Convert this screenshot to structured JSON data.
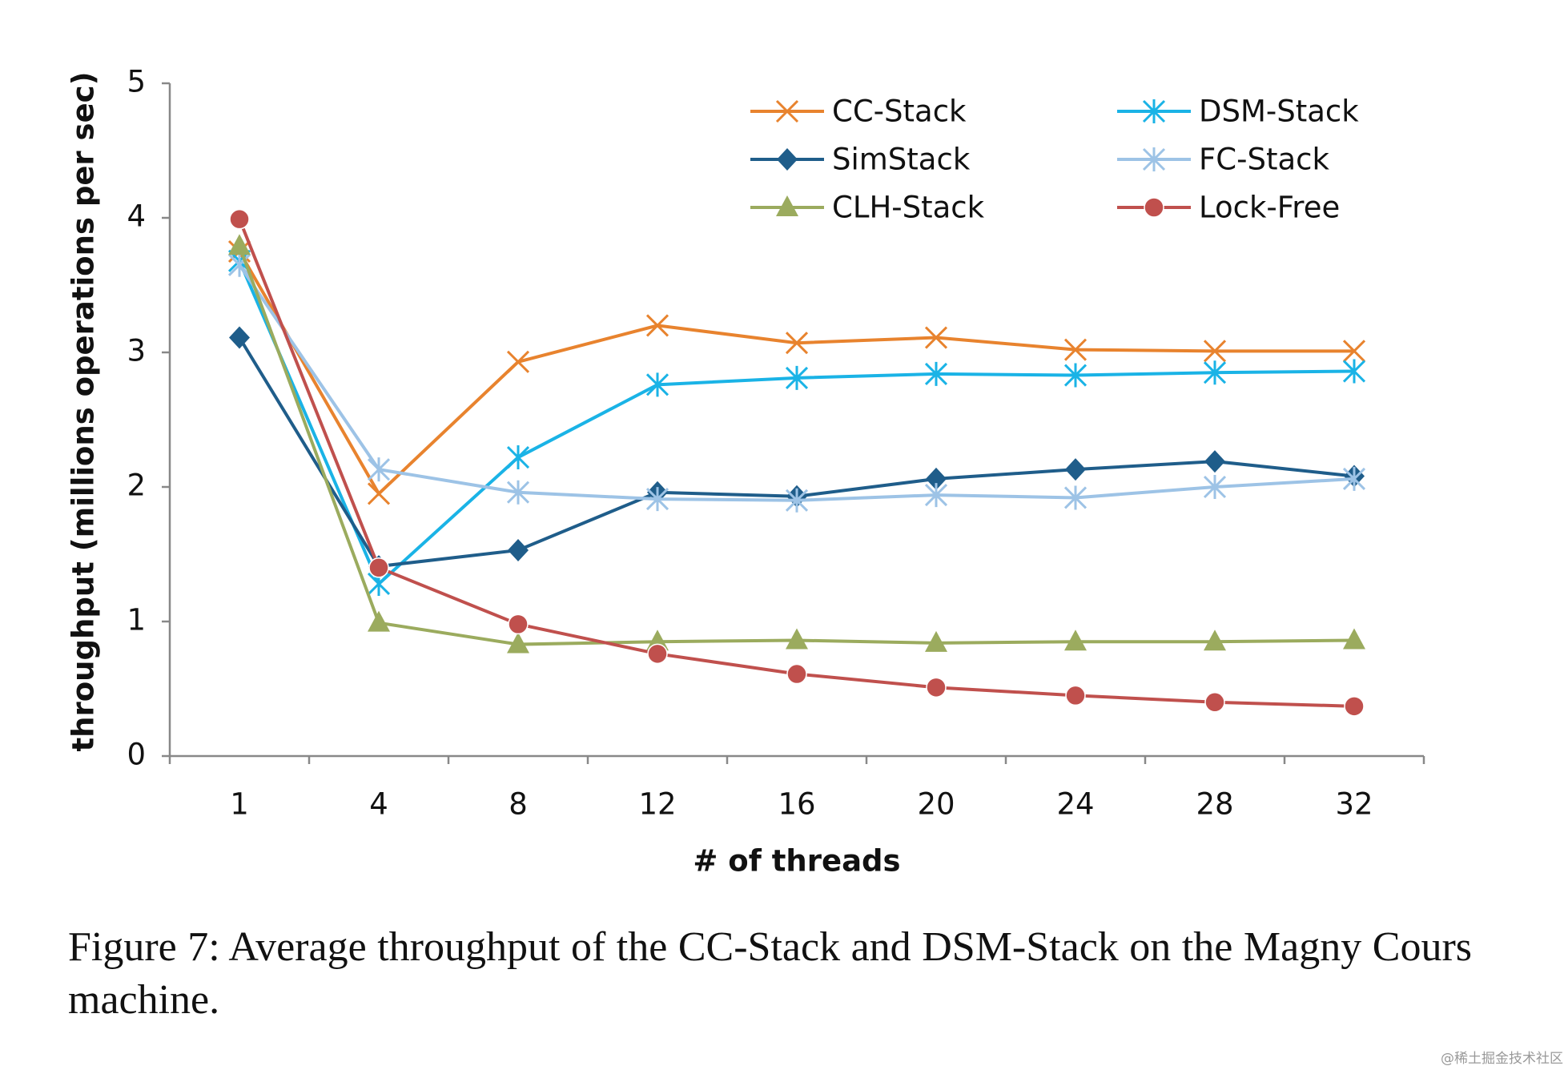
{
  "chart_data": {
    "type": "line",
    "x_label": "# of threads",
    "y_label": "throughput (millions operations per sec)",
    "caption": "Figure 7: Average throughput of the CC-Stack and DSM-Stack on the Magny Cours machine.",
    "watermark": "@稀土掘金技术社区",
    "categories": [
      "1",
      "4",
      "8",
      "12",
      "16",
      "20",
      "24",
      "28",
      "32"
    ],
    "ylim": [
      0,
      5
    ],
    "yticks": [
      0,
      1,
      2,
      3,
      4,
      5
    ],
    "grid": false,
    "legend": "top-right",
    "series": [
      {
        "name": "CC-Stack",
        "color": "#e8832e",
        "marker": "x",
        "values": [
          3.75,
          1.95,
          2.93,
          3.2,
          3.07,
          3.11,
          3.02,
          3.01,
          3.01
        ]
      },
      {
        "name": "DSM-Stack",
        "color": "#1ab3e6",
        "marker": "star",
        "values": [
          3.68,
          1.28,
          2.22,
          2.76,
          2.81,
          2.84,
          2.83,
          2.85,
          2.86
        ]
      },
      {
        "name": "SimStack",
        "color": "#1f5d8a",
        "marker": "diamond",
        "values": [
          3.11,
          1.41,
          1.53,
          1.96,
          1.93,
          2.06,
          2.13,
          2.19,
          2.08
        ]
      },
      {
        "name": "FC-Stack",
        "color": "#9dc3e6",
        "marker": "star",
        "values": [
          3.65,
          2.13,
          1.96,
          1.91,
          1.9,
          1.94,
          1.92,
          2.0,
          2.06
        ]
      },
      {
        "name": "CLH-Stack",
        "color": "#9bab5e",
        "marker": "triangle",
        "values": [
          3.79,
          0.99,
          0.83,
          0.85,
          0.86,
          0.84,
          0.85,
          0.85,
          0.86
        ]
      },
      {
        "name": "Lock-Free",
        "color": "#c0504d",
        "marker": "circle",
        "values": [
          3.99,
          1.4,
          0.98,
          0.76,
          0.61,
          0.51,
          0.45,
          0.4,
          0.37
        ]
      }
    ]
  }
}
